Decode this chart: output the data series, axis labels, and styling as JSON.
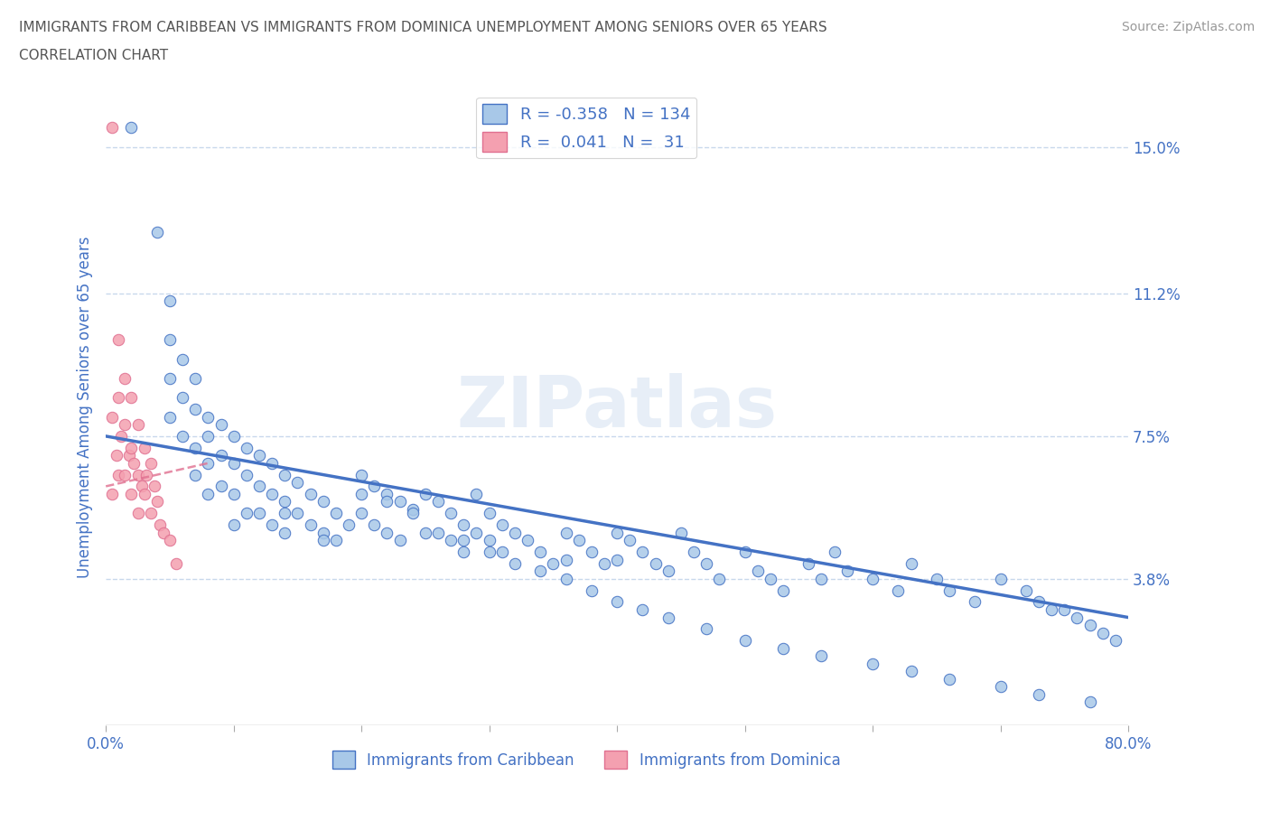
{
  "title_line1": "IMMIGRANTS FROM CARIBBEAN VS IMMIGRANTS FROM DOMINICA UNEMPLOYMENT AMONG SENIORS OVER 65 YEARS",
  "title_line2": "CORRELATION CHART",
  "source": "Source: ZipAtlas.com",
  "ylabel": "Unemployment Among Seniors over 65 years",
  "watermark": "ZIPatlas",
  "xlim": [
    0.0,
    0.8
  ],
  "ylim": [
    0.0,
    0.165
  ],
  "yticks": [
    0.038,
    0.075,
    0.112,
    0.15
  ],
  "ytick_labels": [
    "3.8%",
    "7.5%",
    "11.2%",
    "15.0%"
  ],
  "xticks": [
    0.0,
    0.1,
    0.2,
    0.3,
    0.4,
    0.5,
    0.6,
    0.7,
    0.8
  ],
  "xtick_labels": [
    "0.0%",
    "",
    "",
    "",
    "",
    "",
    "",
    "",
    "80.0%"
  ],
  "legend_R1": "-0.358",
  "legend_N1": "134",
  "legend_R2": "0.041",
  "legend_N2": "31",
  "color_caribbean": "#a8c8e8",
  "color_dominica": "#f4a0b0",
  "color_line_caribbean": "#4472c4",
  "color_dominica_edge": "#e07090",
  "color_text": "#4472c4",
  "background_color": "#ffffff",
  "grid_color": "#c8d8ec",
  "title_color": "#555555",
  "caribbean_x": [
    0.02,
    0.04,
    0.05,
    0.05,
    0.05,
    0.05,
    0.06,
    0.06,
    0.06,
    0.07,
    0.07,
    0.07,
    0.07,
    0.08,
    0.08,
    0.08,
    0.08,
    0.09,
    0.09,
    0.09,
    0.1,
    0.1,
    0.1,
    0.1,
    0.11,
    0.11,
    0.11,
    0.12,
    0.12,
    0.12,
    0.13,
    0.13,
    0.13,
    0.14,
    0.14,
    0.14,
    0.15,
    0.15,
    0.16,
    0.16,
    0.17,
    0.17,
    0.18,
    0.18,
    0.19,
    0.2,
    0.2,
    0.21,
    0.21,
    0.22,
    0.22,
    0.23,
    0.23,
    0.24,
    0.25,
    0.25,
    0.26,
    0.27,
    0.27,
    0.28,
    0.28,
    0.29,
    0.29,
    0.3,
    0.3,
    0.31,
    0.31,
    0.32,
    0.33,
    0.34,
    0.35,
    0.36,
    0.36,
    0.37,
    0.38,
    0.39,
    0.4,
    0.4,
    0.41,
    0.42,
    0.43,
    0.44,
    0.45,
    0.46,
    0.47,
    0.48,
    0.5,
    0.51,
    0.52,
    0.53,
    0.55,
    0.56,
    0.57,
    0.58,
    0.6,
    0.62,
    0.63,
    0.65,
    0.66,
    0.68,
    0.7,
    0.72,
    0.73,
    0.74,
    0.75,
    0.76,
    0.77,
    0.78,
    0.79,
    0.14,
    0.17,
    0.2,
    0.22,
    0.24,
    0.26,
    0.28,
    0.3,
    0.32,
    0.34,
    0.36,
    0.38,
    0.4,
    0.42,
    0.44,
    0.47,
    0.5,
    0.53,
    0.56,
    0.6,
    0.63,
    0.66,
    0.7,
    0.73,
    0.77
  ],
  "caribbean_y": [
    0.155,
    0.128,
    0.11,
    0.1,
    0.09,
    0.08,
    0.095,
    0.085,
    0.075,
    0.09,
    0.082,
    0.072,
    0.065,
    0.08,
    0.075,
    0.068,
    0.06,
    0.078,
    0.07,
    0.062,
    0.075,
    0.068,
    0.06,
    0.052,
    0.072,
    0.065,
    0.055,
    0.07,
    0.062,
    0.055,
    0.068,
    0.06,
    0.052,
    0.065,
    0.058,
    0.05,
    0.063,
    0.055,
    0.06,
    0.052,
    0.058,
    0.05,
    0.055,
    0.048,
    0.052,
    0.065,
    0.055,
    0.062,
    0.052,
    0.06,
    0.05,
    0.058,
    0.048,
    0.056,
    0.06,
    0.05,
    0.058,
    0.055,
    0.048,
    0.052,
    0.045,
    0.06,
    0.05,
    0.055,
    0.048,
    0.052,
    0.045,
    0.05,
    0.048,
    0.045,
    0.042,
    0.05,
    0.043,
    0.048,
    0.045,
    0.042,
    0.05,
    0.043,
    0.048,
    0.045,
    0.042,
    0.04,
    0.05,
    0.045,
    0.042,
    0.038,
    0.045,
    0.04,
    0.038,
    0.035,
    0.042,
    0.038,
    0.045,
    0.04,
    0.038,
    0.035,
    0.042,
    0.038,
    0.035,
    0.032,
    0.038,
    0.035,
    0.032,
    0.03,
    0.03,
    0.028,
    0.026,
    0.024,
    0.022,
    0.055,
    0.048,
    0.06,
    0.058,
    0.055,
    0.05,
    0.048,
    0.045,
    0.042,
    0.04,
    0.038,
    0.035,
    0.032,
    0.03,
    0.028,
    0.025,
    0.022,
    0.02,
    0.018,
    0.016,
    0.014,
    0.012,
    0.01,
    0.008,
    0.006
  ],
  "dominica_x": [
    0.005,
    0.005,
    0.005,
    0.008,
    0.01,
    0.01,
    0.01,
    0.012,
    0.015,
    0.015,
    0.015,
    0.018,
    0.02,
    0.02,
    0.02,
    0.022,
    0.025,
    0.025,
    0.025,
    0.028,
    0.03,
    0.03,
    0.032,
    0.035,
    0.035,
    0.038,
    0.04,
    0.042,
    0.045,
    0.05,
    0.055
  ],
  "dominica_y": [
    0.155,
    0.08,
    0.06,
    0.07,
    0.1,
    0.085,
    0.065,
    0.075,
    0.09,
    0.078,
    0.065,
    0.07,
    0.085,
    0.072,
    0.06,
    0.068,
    0.078,
    0.065,
    0.055,
    0.062,
    0.072,
    0.06,
    0.065,
    0.068,
    0.055,
    0.062,
    0.058,
    0.052,
    0.05,
    0.048,
    0.042
  ]
}
